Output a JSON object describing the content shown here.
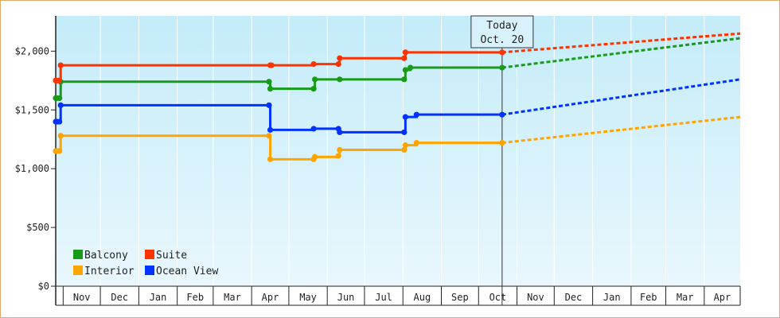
{
  "chart_data": {
    "type": "line",
    "title": "",
    "xlabel": "",
    "ylabel": "",
    "ylim": [
      0,
      2300
    ],
    "y_ticks": [
      {
        "value": 0,
        "label": "$0"
      },
      {
        "value": 500,
        "label": "$500"
      },
      {
        "value": 1000,
        "label": "$1,000"
      },
      {
        "value": 1500,
        "label": "$1,500"
      },
      {
        "value": 2000,
        "label": "$2,000"
      }
    ],
    "x_months": [
      "Nov",
      "Dec",
      "Jan",
      "Feb",
      "Mar",
      "Apr",
      "May",
      "Jun",
      "Jul",
      "Aug",
      "Sep",
      "Oct",
      "Nov",
      "Dec",
      "Jan",
      "Feb",
      "Mar",
      "Apr"
    ],
    "x_range": [
      "2019-10-26",
      "2021-04-30"
    ],
    "today": {
      "date": "2020-10-20",
      "label_line1": "Today",
      "label_line2": "Oct. 20"
    },
    "legend_placement": "bottom-left",
    "grid": true,
    "series": [
      {
        "name": "Balcony",
        "color": "#1a9a1a",
        "history": [
          [
            "2019-10-26",
            1600
          ],
          [
            "2019-10-27",
            1600
          ],
          [
            "2019-10-29",
            1600
          ],
          [
            "2019-10-30",
            1740
          ],
          [
            "2020-04-15",
            1740
          ],
          [
            "2020-04-16",
            1680
          ],
          [
            "2020-05-21",
            1680
          ],
          [
            "2020-05-22",
            1760
          ],
          [
            "2020-06-11",
            1760
          ],
          [
            "2020-08-02",
            1760
          ],
          [
            "2020-08-03",
            1840
          ],
          [
            "2020-08-07",
            1860
          ],
          [
            "2020-10-20",
            1860
          ]
        ],
        "projection": [
          [
            "2020-10-20",
            1860
          ],
          [
            "2021-04-30",
            2110
          ]
        ]
      },
      {
        "name": "Suite",
        "color": "#ff3300",
        "history": [
          [
            "2019-10-26",
            1750
          ],
          [
            "2019-10-28",
            1750
          ],
          [
            "2019-10-29",
            1750
          ],
          [
            "2019-10-30",
            1880
          ],
          [
            "2020-04-16",
            1880
          ],
          [
            "2020-04-17",
            1880
          ],
          [
            "2020-05-21",
            1890
          ],
          [
            "2020-06-10",
            1890
          ],
          [
            "2020-06-11",
            1940
          ],
          [
            "2020-08-02",
            1940
          ],
          [
            "2020-08-03",
            1990
          ],
          [
            "2020-10-20",
            1990
          ]
        ],
        "projection": [
          [
            "2020-10-20",
            1990
          ],
          [
            "2021-04-30",
            2150
          ]
        ]
      },
      {
        "name": "Interior",
        "color": "#ffa500",
        "history": [
          [
            "2019-10-26",
            1150
          ],
          [
            "2019-10-27",
            1150
          ],
          [
            "2019-10-29",
            1150
          ],
          [
            "2019-10-30",
            1280
          ],
          [
            "2020-04-15",
            1280
          ],
          [
            "2020-04-16",
            1080
          ],
          [
            "2020-05-21",
            1080
          ],
          [
            "2020-05-22",
            1100
          ],
          [
            "2020-06-10",
            1110
          ],
          [
            "2020-06-11",
            1160
          ],
          [
            "2020-08-02",
            1160
          ],
          [
            "2020-08-03",
            1200
          ],
          [
            "2020-08-12",
            1220
          ],
          [
            "2020-10-20",
            1220
          ]
        ],
        "projection": [
          [
            "2020-10-20",
            1220
          ],
          [
            "2021-04-30",
            1440
          ]
        ]
      },
      {
        "name": "Ocean View",
        "color": "#0033ff",
        "history": [
          [
            "2019-10-26",
            1400
          ],
          [
            "2019-10-27",
            1400
          ],
          [
            "2019-10-29",
            1400
          ],
          [
            "2019-10-30",
            1540
          ],
          [
            "2020-04-15",
            1540
          ],
          [
            "2020-04-16",
            1330
          ],
          [
            "2020-05-21",
            1340
          ],
          [
            "2020-06-10",
            1340
          ],
          [
            "2020-06-11",
            1310
          ],
          [
            "2020-08-02",
            1310
          ],
          [
            "2020-08-03",
            1440
          ],
          [
            "2020-08-12",
            1460
          ],
          [
            "2020-10-20",
            1460
          ]
        ],
        "projection": [
          [
            "2020-10-20",
            1460
          ],
          [
            "2021-04-30",
            1760
          ]
        ]
      }
    ]
  }
}
